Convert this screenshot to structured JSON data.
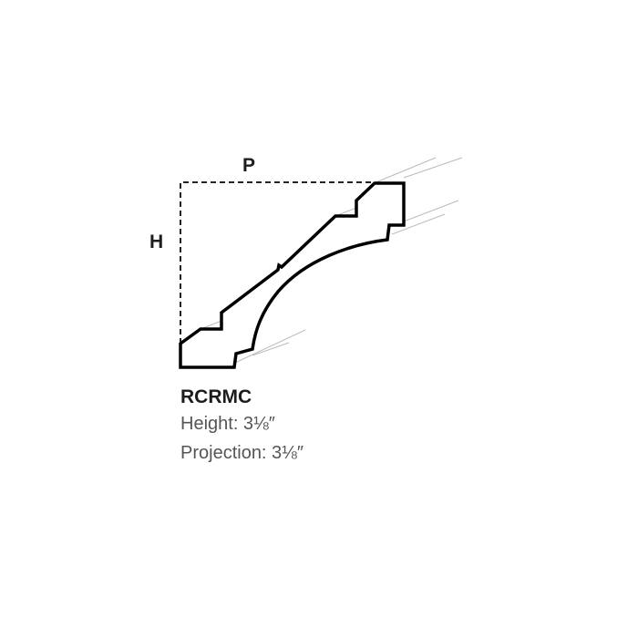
{
  "diagram": {
    "projection_label": "P",
    "height_label": "H",
    "product_code": "RCRMC",
    "height_spec": "Height: 3⅛″",
    "projection_spec": "Projection: 3⅛″",
    "stroke_color": "#000000",
    "guide_color": "#bbbbbb"
  }
}
